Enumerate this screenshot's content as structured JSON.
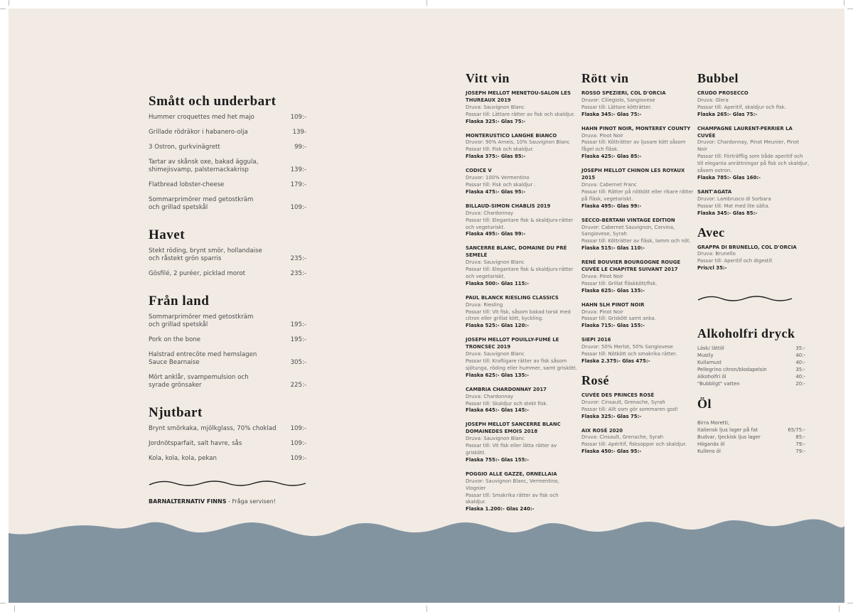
{
  "colors": {
    "paper": "#f1ebe4",
    "sea": "#8394a1",
    "ink": "#1b1b1b"
  },
  "food": [
    {
      "title": "Smått och underbart",
      "items": [
        {
          "name": "Hummer croquettes med het majo",
          "price": "109:-"
        },
        {
          "name": "Grillade rödräkor i habanero-olja",
          "price": "139-"
        },
        {
          "name": "3 Ostron, gurkvinägrett",
          "price": "99:-"
        },
        {
          "name": "Tartar av skånsk oxe, bakad äggula,\nshimejisvamp, palsternackakrisp",
          "price": "139:-"
        },
        {
          "name": "Flatbread lobster-cheese",
          "price": "179:-"
        },
        {
          "name": "Sommarprimörer med getostkräm\noch grillad spetskål",
          "price": "109:-"
        }
      ]
    },
    {
      "title": "Havet",
      "items": [
        {
          "name": "Stekt röding, brynt smör, hollandaise\noch råstekt grön sparris",
          "price": "235:-"
        },
        {
          "name": "Gösfilé, 2 puréer, picklad morot",
          "price": "235:-"
        }
      ]
    },
    {
      "title": "Från land",
      "items": [
        {
          "name": "Sommarprimörer med getostkräm\noch grillad spetskål",
          "price": "195:-"
        },
        {
          "name": "Pork on the bone",
          "price": "195:-"
        },
        {
          "name": "Halstrad entrecôte med hemslagen\nSauce Bearnaise",
          "price": "305:-"
        },
        {
          "name": "Mört anklår, svampemulsion och\nsyrade grönsaker",
          "price": "225:-"
        }
      ]
    },
    {
      "title": "Njutbart",
      "items": [
        {
          "name": "Brynt smörkaka, mjölkglass, 70% choklad",
          "price": "109:-"
        },
        {
          "name": "Jordnötsparfait, salt havre, sås",
          "price": "109:-"
        },
        {
          "name": "Kola, kola, kola, pekan",
          "price": "109:-"
        }
      ]
    }
  ],
  "kids": {
    "bold": "BARNALTERNATIV FINNS",
    "rest": " - Fråga servisen!"
  },
  "wine_columns": [
    [
      {
        "title": "Vitt vin",
        "wines": [
          {
            "name": "Joseph Mellot Menetou-Salon Les Thureaux 2019",
            "grape": "Druva: Sauvignon Blanc",
            "pair": "Passar till: Lättare rätter av fisk och skaldjur.",
            "price": "Flaska 325:- Glas 75:-"
          },
          {
            "name": "Monterustico Langhe Bianco",
            "grape": "Druvor: 90% Arneis, 10% Sauvignon Blanc",
            "pair": "Passar till: Fisk och skaldjur.",
            "price": "Flaska 375:- Glas 85:-"
          },
          {
            "name": "Codice V",
            "grape": "Druvor: 100% Vermentino",
            "pair": "Passar till: Fisk och skaldjur .",
            "price": "Flaska 475:- Glas 95:-"
          },
          {
            "name": "Billaud-Simon Chablis 2019",
            "grape": "Druva: Chardonnay",
            "pair": "Passar till: Elegantare fisk & skaldjurs-rätter och vegetariskt.",
            "price": "Flaska 495:- Glas 99:-"
          },
          {
            "name": "Sancerre Blanc, Domaine du Pré Semelé",
            "grape": "Druva: Sauvignon Blanc",
            "pair": "Passar till: Elegantare fisk & skaldjurs-rätter och vegetariskt.",
            "price": "Flaska 500:- Glas 115:-"
          },
          {
            "name": "Paul Blanck Riesling Classics",
            "grape": "Druva: Riesling",
            "pair": "Passar till: Vit fisk, såsom bakad torsk med citron eller grillat kött, kyckling.",
            "price": "Flaska 525:- Glas 120:-"
          },
          {
            "name": "Joseph Mellot Pouilly-Fumé Le Troncsec 2019",
            "grape": "Druva: Sauvignon Blanc",
            "pair": "Passar till: Kraftigare rätter av fisk såsom sjötunga, röding eller hummer, samt griskött.",
            "price": "Flaska 625:- Glas 135:-"
          },
          {
            "name": "Cambria Chardonnay 2017",
            "grape": "Druva: Chardonnay",
            "pair": "Passar till: Skaldjur och stekt fisk.",
            "price": "Flaska 645:- Glas 145:-"
          },
          {
            "name": "Joseph Mellot Sancerre Blanc Domainedes Emois 2018",
            "grape": "Druva: Sauvignon Blanc",
            "pair": "Passar till: Vit fisk eller lätta rätter av griskött.",
            "price": "Flaska 755:- Glas 155:-"
          },
          {
            "name": "Poggio Alle Gazze, Ornellaia",
            "grape": "Druvor: Sauvignon Blanc, Vermentino, Viognier",
            "pair": "Passar till: Smakrika rätter av fisk och skaldjur.",
            "price": "Flaska 1.200:- Glas 240:-"
          }
        ]
      }
    ],
    [
      {
        "title": "Rött vin",
        "wines": [
          {
            "name": "Rosso Spezieri, Col d'Orcia",
            "grape": "Druvor: Ciliegiolo, Sangiovese",
            "pair": "Passar till: Lättare kötträtter.",
            "price": "Flaska 345:- Glas 75:-"
          },
          {
            "name": "Hahn Pinot Noir, Monterey County",
            "grape": "Druva: Pinot Noir",
            "pair": "Passar till: Kötträtter av ljusare kött såsom fågel och fläsk.",
            "price": "Flaska 425:- Glas 85:-"
          },
          {
            "name": "Joseph Mellot Chinon Les Royaux 2015",
            "grape": "Druva: Cabernet Franc",
            "pair": "Passar till: Rätter på nötkött eller rikare rätter på fläsk, vegetariskt.",
            "price": "Flaska 495:- Glas 99:-"
          },
          {
            "name": "Secco-Bertani Vintage Edition",
            "grape": "Druvor: Cabernet Sauvignon, Corvina, Sangiovese, Syrah",
            "pair": "Passar till: Kötträtter av fläsk, lamm och nöt.",
            "price": "Flaska 515:- Glas 110:-"
          },
          {
            "name": "René Bouvier Bourgogne Rouge Cuvée Le Chapitre Suivant 2017",
            "grape": "Druva: Pinot Noir",
            "pair": "Passar till: Grillat fläskkött/fisk.",
            "price": "Flaska 625:- Glas 135:-"
          },
          {
            "name": "Hahn SLH Pinot Noir",
            "grape": "Druva: Pinot Noir",
            "pair": "Passar till: Griskött samt anka.",
            "price": "Flaska 715:- Glas 155:-"
          },
          {
            "name": "Siepi 2016",
            "grape": "Druvor: 50% Merlot, 50% Sangiovese",
            "pair": "Passar till: Nötkött och smakrika rätter.",
            "price": "Flaska 2.375:- Glas 475:-"
          }
        ]
      },
      {
        "title": "Rosé",
        "wines": [
          {
            "name": "Cuvée des Princes Rosé",
            "grape": "Druvor: Cinsault, Grenache, Syrah",
            "pair": "Passar till: Allt som gör sommaren god!",
            "price": "Flaska 325:- Glas 75:-"
          },
          {
            "name": "AIX Rosé 2020",
            "grape": "Druva: Cinsault, Grenache, Syrah",
            "pair": "Passar till: Apéritif, fisksoppor och skaldjur.",
            "price": "Flaska 450:- Glas 95:-"
          }
        ]
      }
    ],
    [
      {
        "title": "Bubbel",
        "wines": [
          {
            "name": "Crudo Prosecco",
            "grape": "Druva: Glera",
            "pair": "Passar till: Aperitif, skaldjur och fisk.",
            "price": "Flaska 265:- Glas 75:-"
          },
          {
            "name": "Champagne Laurent-Perrier La Cuvée",
            "grape": "Druvor: Chardonnay, Pinot Meunier, Pinot Noir",
            "pair": "Passar till: Förträfflig som både aperitif och till eleganta anrättningar på fisk och skaldjur, såsom ostron.",
            "price": "Flaska 785:- Glas 160:-"
          },
          {
            "name": "Sant'Agata",
            "grape": "Druvor: Lambrusco di Sorbara",
            "pair": "Passar till: Mat med lite sälta.",
            "price": "Flaska 345:- Glas 85:-"
          }
        ]
      },
      {
        "title": "Avec",
        "wines": [
          {
            "name": "Grappa di Brunello, Col d'Orcia",
            "grape": "Druva: Brunello",
            "pair": "Passar till: Aperitif och digestif.",
            "price": "Pris/cl 35:-"
          }
        ]
      }
    ]
  ],
  "soft": {
    "title": "Alkoholfri dryck",
    "items": [
      {
        "name": "Läsk/ lättöl",
        "price": "35:-"
      },
      {
        "name": "Mustly",
        "price": "40:-"
      },
      {
        "name": "Kullamust",
        "price": "40:-"
      },
      {
        "name": "Pellegrino citron/blodapelsin",
        "price": "35:-"
      },
      {
        "name": "Alkoholfri öl",
        "price": "40:-"
      },
      {
        "name": "\"Bubbligt\" vatten",
        "price": "20:-"
      }
    ]
  },
  "beer": {
    "title": "Öl",
    "items": [
      {
        "name": "Birra Moretti,\nitaliensk ljus lager på fat",
        "price": "65/75:-"
      },
      {
        "name": "Budvar, tjeckisk ljus lager",
        "price": "85:-"
      },
      {
        "name": "Höganäs öl",
        "price": "79:-"
      },
      {
        "name": "Kullens öl",
        "price": "79:-"
      }
    ]
  }
}
